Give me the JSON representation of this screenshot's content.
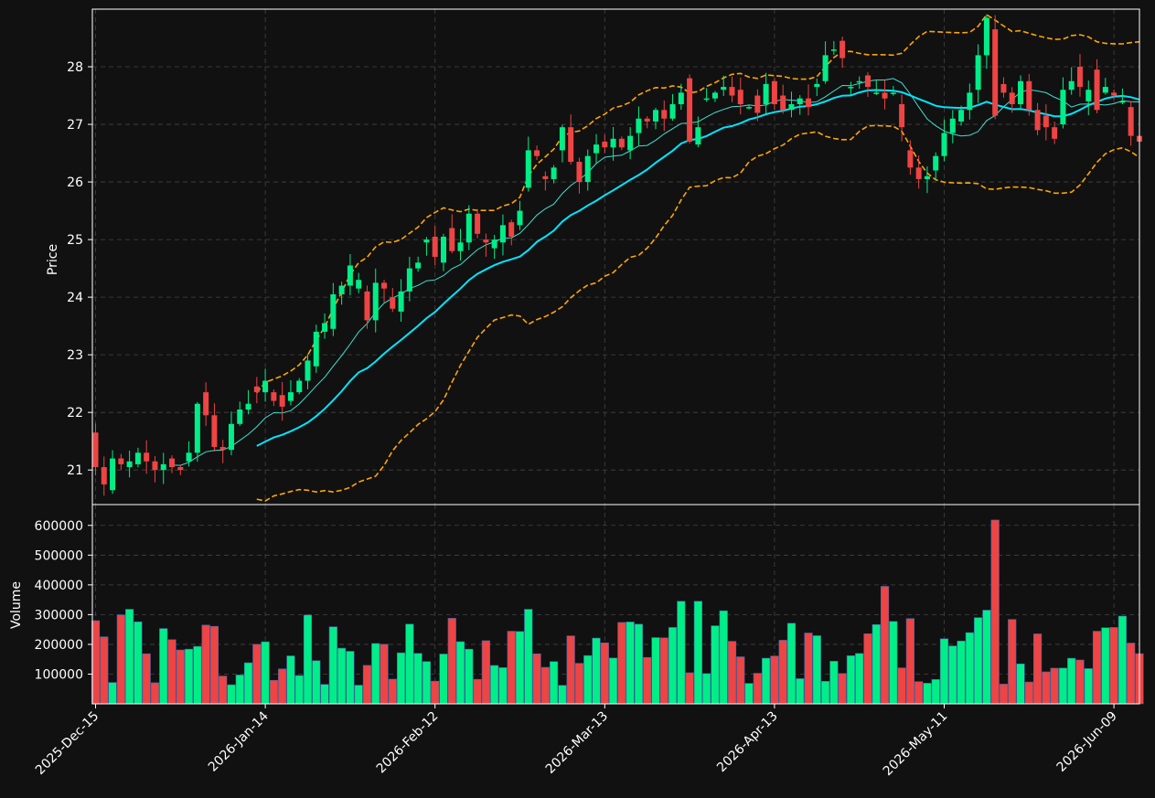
{
  "chart_data": {
    "type": "candlestick",
    "colors": {
      "background": "#111111",
      "up": "#00ee88",
      "down": "#ee4444",
      "sma_fast": "#40e0d0",
      "sma_slow": "#00e5ff",
      "bollinger": "#ffa500",
      "grid": "#444444",
      "axis": "#ffffff"
    },
    "price_panel": {
      "ylabel": "Price",
      "ylim": [
        20.4,
        29.0
      ],
      "yticks": [
        21,
        22,
        23,
        24,
        25,
        26,
        27,
        28
      ]
    },
    "volume_panel": {
      "ylabel": "Volume",
      "ylim": [
        0,
        670000
      ],
      "yticks": [
        100000,
        200000,
        300000,
        400000,
        500000,
        600000
      ],
      "ytick_labels": [
        "100000",
        "200000",
        "300000",
        "400000",
        "500000",
        "600000"
      ]
    },
    "x_axis": {
      "ticks": [
        {
          "index": 0,
          "label": "2025-Dec-15"
        },
        {
          "index": 20,
          "label": "2026-Jan-14"
        },
        {
          "index": 40,
          "label": "2026-Feb-12"
        },
        {
          "index": 60,
          "label": "2026-Mar-13"
        },
        {
          "index": 80,
          "label": "2026-Apr-13"
        },
        {
          "index": 100,
          "label": "2026-May-11"
        },
        {
          "index": 120,
          "label": "2026-Jun-09"
        }
      ]
    },
    "closes": [
      21.05,
      20.75,
      21.2,
      21.1,
      21.15,
      21.3,
      21.15,
      21.0,
      21.1,
      21.05,
      21.0,
      21.3,
      22.15,
      21.95,
      21.4,
      21.35,
      21.8,
      22.05,
      22.15,
      22.35,
      22.55,
      22.2,
      22.1,
      22.35,
      22.55,
      22.9,
      23.4,
      23.55,
      24.05,
      24.2,
      24.55,
      24.3,
      23.6,
      24.25,
      24.15,
      23.8,
      24.1,
      24.5,
      24.6,
      25.0,
      24.7,
      25.05,
      24.8,
      24.95,
      25.45,
      25.1,
      24.95,
      25.0,
      25.25,
      25.05,
      25.5,
      26.55,
      26.45,
      26.05,
      26.25,
      26.95,
      26.35,
      26.0,
      26.45,
      26.65,
      26.6,
      26.75,
      26.6,
      26.8,
      27.1,
      27.05,
      27.25,
      27.1,
      27.35,
      27.55,
      26.7,
      26.95,
      27.45,
      27.55,
      27.65,
      27.5,
      27.35,
      27.3,
      27.2,
      27.7,
      27.35,
      27.25,
      27.35,
      27.45,
      27.3,
      27.7,
      28.2,
      28.3,
      28.15,
      27.65,
      27.75,
      27.65,
      27.55,
      27.45,
      27.55,
      26.95,
      26.25,
      26.05,
      26.1,
      26.45,
      26.85,
      27.1,
      27.25,
      27.55,
      28.2,
      28.85,
      27.15,
      27.55,
      27.35,
      27.75,
      27.25,
      26.9,
      26.95,
      26.75,
      27.6,
      27.75,
      27.65,
      27.6,
      27.25,
      27.65,
      27.5,
      27.4,
      26.8,
      26.7
    ],
    "opens": [
      21.65,
      21.05,
      20.65,
      21.2,
      21.05,
      21.1,
      21.3,
      21.15,
      21.0,
      21.2,
      21.05,
      21.15,
      21.3,
      22.35,
      21.95,
      21.4,
      21.35,
      21.8,
      22.05,
      22.45,
      22.35,
      22.35,
      22.3,
      22.2,
      22.35,
      22.55,
      22.8,
      23.4,
      23.45,
      24.05,
      24.2,
      24.15,
      24.1,
      23.6,
      24.25,
      24.0,
      23.75,
      24.1,
      24.5,
      24.95,
      25.05,
      24.6,
      25.2,
      24.8,
      24.95,
      25.45,
      25.0,
      24.85,
      24.95,
      25.3,
      25.25,
      25.9,
      26.55,
      26.1,
      26.05,
      26.55,
      26.95,
      26.35,
      26.0,
      26.5,
      26.7,
      26.6,
      26.75,
      26.55,
      26.85,
      27.1,
      27.05,
      27.25,
      27.1,
      27.35,
      27.8,
      26.65,
      27.45,
      27.45,
      27.6,
      27.65,
      27.6,
      27.3,
      27.5,
      27.35,
      27.75,
      27.5,
      27.25,
      27.35,
      27.45,
      27.65,
      27.75,
      28.3,
      28.45,
      27.65,
      27.75,
      27.85,
      27.55,
      27.55,
      27.55,
      27.35,
      26.55,
      26.25,
      26.05,
      26.2,
      26.45,
      26.85,
      27.05,
      27.25,
      27.6,
      28.2,
      28.65,
      27.7,
      27.55,
      27.35,
      27.75,
      27.25,
      27.15,
      26.95,
      27.0,
      27.6,
      28.0,
      27.4,
      27.95,
      27.55,
      27.55,
      27.4,
      27.3,
      26.8
    ]
  }
}
